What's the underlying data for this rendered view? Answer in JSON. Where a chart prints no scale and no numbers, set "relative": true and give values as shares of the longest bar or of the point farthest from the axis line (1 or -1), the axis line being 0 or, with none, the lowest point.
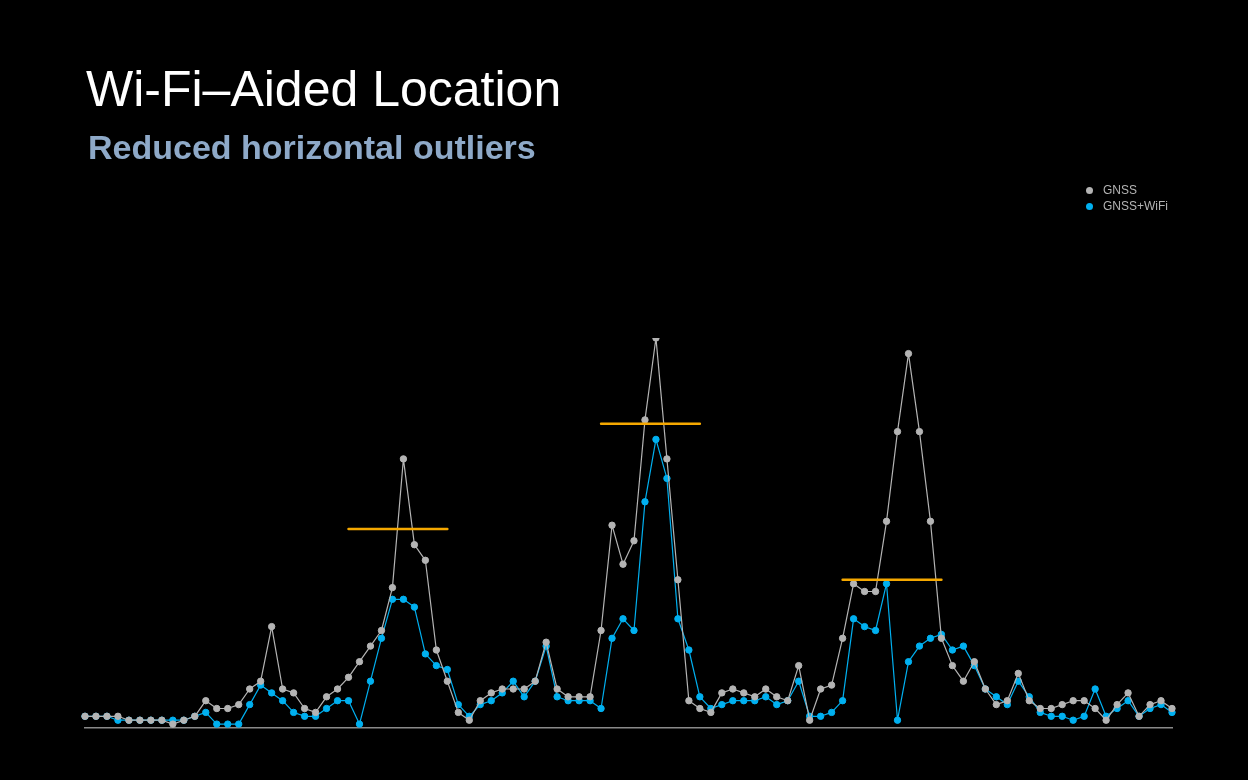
{
  "chart_data": {
    "type": "line",
    "title": "Wi-Fi–Aided Location",
    "subtitle": "Reduced horizontal outliers",
    "relative": true,
    "legend": "top right",
    "marker": "circle",
    "tick_labels": false,
    "categories": [
      null,
      null,
      null,
      null,
      null,
      null,
      null,
      null,
      null,
      null,
      null,
      null,
      null,
      null,
      null,
      null,
      null,
      null,
      null,
      null,
      null,
      null,
      null,
      null,
      null,
      null,
      null,
      null,
      null,
      null,
      null,
      null,
      null,
      null,
      null,
      null,
      null,
      null,
      null,
      null,
      null,
      null,
      null,
      null,
      null,
      null,
      null,
      null,
      null,
      null,
      null,
      null,
      null,
      null,
      null,
      null,
      null,
      null,
      null,
      null,
      null,
      null,
      null,
      null,
      null,
      null,
      null,
      null,
      null,
      null,
      null,
      null,
      null,
      null,
      null,
      null,
      null,
      null,
      null,
      null,
      null,
      null,
      null,
      null,
      null,
      null,
      null,
      null,
      null,
      null,
      null,
      null,
      null,
      null,
      null,
      null,
      null,
      null,
      null,
      null
    ],
    "series": [
      {
        "name": "GNSS",
        "color": "#b4b4b4",
        "values": [
          0.03,
          0.03,
          0.03,
          0.03,
          0.02,
          0.02,
          0.02,
          0.02,
          0.01,
          0.02,
          0.03,
          0.07,
          0.05,
          0.05,
          0.06,
          0.1,
          0.12,
          0.26,
          0.1,
          0.09,
          0.05,
          0.04,
          0.08,
          0.1,
          0.13,
          0.17,
          0.21,
          0.25,
          0.36,
          0.69,
          0.47,
          0.43,
          0.2,
          0.12,
          0.04,
          0.02,
          0.07,
          0.09,
          0.1,
          0.1,
          0.1,
          0.12,
          0.22,
          0.1,
          0.08,
          0.08,
          0.08,
          0.25,
          0.52,
          0.42,
          0.48,
          0.79,
          1,
          0.69,
          0.38,
          0.07,
          0.05,
          0.04,
          0.09,
          0.1,
          0.09,
          0.08,
          0.1,
          0.08,
          0.07,
          0.16,
          0.02,
          0.1,
          0.11,
          0.23,
          0.37,
          0.35,
          0.35,
          0.53,
          0.76,
          0.96,
          0.76,
          0.53,
          0.23,
          0.16,
          0.12,
          0.17,
          0.1,
          0.06,
          0.07,
          0.14,
          0.07,
          0.05,
          0.05,
          0.06,
          0.07,
          0.07,
          0.05,
          0.02,
          0.06,
          0.09,
          0.03,
          0.06,
          0.07,
          0.05
        ]
      },
      {
        "name": "GNSS+WiFi",
        "color": "#00b0f0",
        "values": [
          0.03,
          0.03,
          0.03,
          0.02,
          0.02,
          0.02,
          0.02,
          0.02,
          0.02,
          0.02,
          0.03,
          0.04,
          0.01,
          0.01,
          0.01,
          0.06,
          0.11,
          0.09,
          0.07,
          0.04,
          0.03,
          0.03,
          0.05,
          0.07,
          0.07,
          0.01,
          0.12,
          0.23,
          0.33,
          0.33,
          0.31,
          0.19,
          0.16,
          0.15,
          0.06,
          0.03,
          0.06,
          0.07,
          0.09,
          0.12,
          0.08,
          0.12,
          0.21,
          0.08,
          0.07,
          0.07,
          0.07,
          0.05,
          0.23,
          0.28,
          0.25,
          0.58,
          0.74,
          0.64,
          0.28,
          0.2,
          0.08,
          0.05,
          0.06,
          0.07,
          0.07,
          0.07,
          0.08,
          0.06,
          0.07,
          0.12,
          0.03,
          0.03,
          0.04,
          0.07,
          0.28,
          0.26,
          0.25,
          0.37,
          0.02,
          0.17,
          0.21,
          0.23,
          0.24,
          0.2,
          0.21,
          0.16,
          0.1,
          0.08,
          0.06,
          0.12,
          0.08,
          0.04,
          0.03,
          0.03,
          0.02,
          0.03,
          0.1,
          0.03,
          0.05,
          0.07,
          0.03,
          0.05,
          0.06,
          0.04
        ]
      },
      {
        "type": "line",
        "color": "#f5a800",
        "marker": "none",
        "values": [
          null,
          null,
          null,
          null,
          null,
          null,
          null,
          null,
          null,
          null,
          null,
          null,
          null,
          null,
          null,
          null,
          null,
          null,
          null,
          null,
          null,
          null,
          null,
          null,
          0.51,
          0.51,
          0.51,
          0.51,
          0.51,
          0.51,
          0.51,
          0.51,
          0.51,
          0.51,
          null,
          null,
          null,
          null,
          null,
          null,
          null,
          null,
          null,
          null,
          null,
          null,
          null,
          0.78,
          0.78,
          0.78,
          0.78,
          0.78,
          0.78,
          0.78,
          0.78,
          0.78,
          0.78,
          null,
          null,
          null,
          null,
          null,
          null,
          null,
          null,
          null,
          null,
          null,
          null,
          0.38,
          0.38,
          0.38,
          0.38,
          0.38,
          0.38,
          0.38,
          0.38,
          0.38,
          0.38,
          null,
          null,
          null,
          null,
          null,
          null,
          null,
          null,
          null,
          null,
          null,
          null,
          null,
          null,
          null,
          null,
          null,
          null,
          null,
          null,
          null
        ]
      }
    ]
  }
}
